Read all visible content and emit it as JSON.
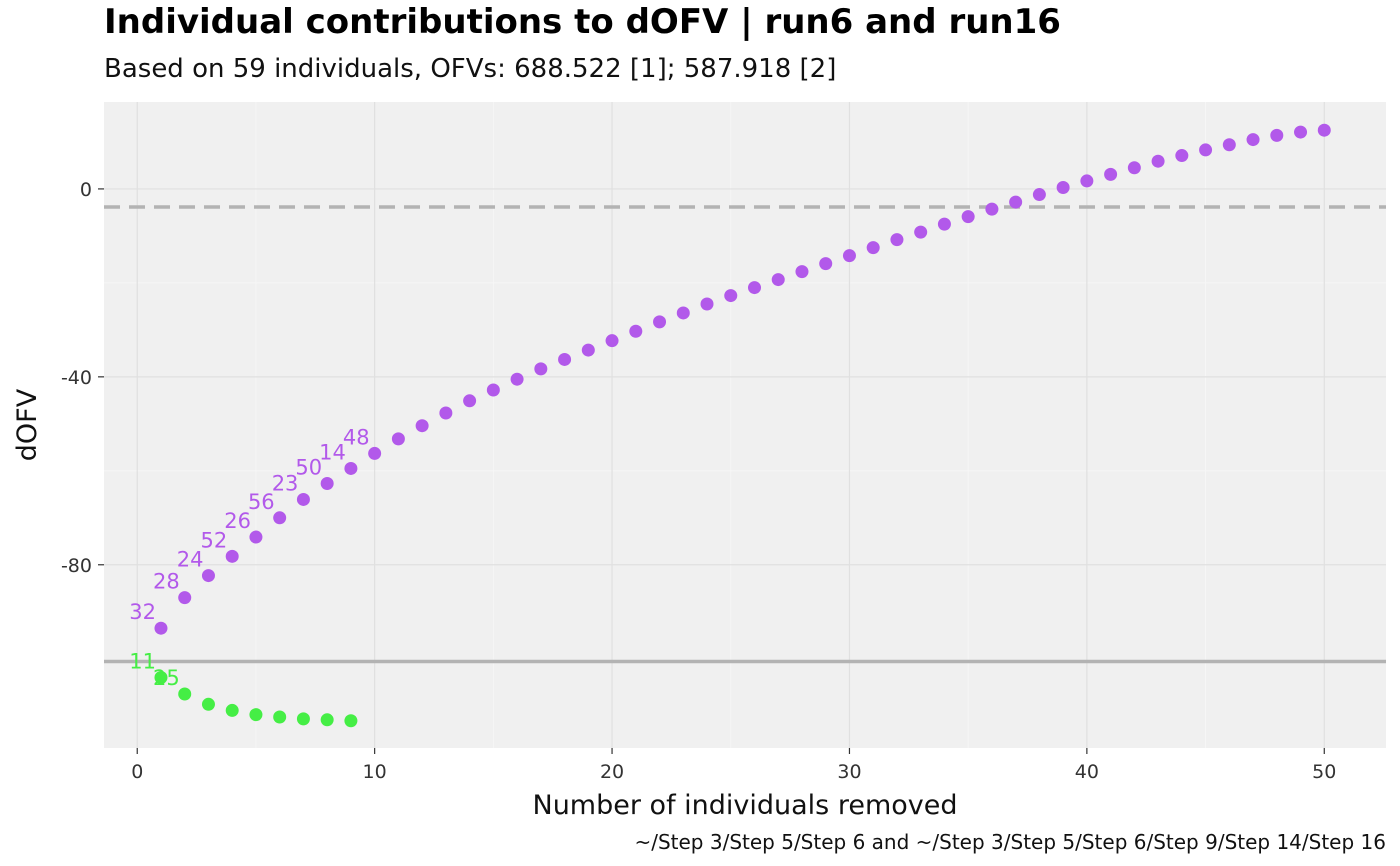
{
  "title": "Individual contributions to dOFV | run6 and run16",
  "subtitle": "Based on 59 individuals, OFVs: 688.522 [1]; 587.918 [2]",
  "caption": "~/Step 3/Step 5/Step 6 and ~/Step 3/Step 5/Step 6/Step 9/Step 14/Step 16",
  "chart_data": {
    "type": "scatter",
    "xlabel": "Number of individuals removed",
    "ylabel": "dOFV",
    "xlim": [
      -1.4,
      52.6
    ],
    "ylim": [
      -119,
      18.5
    ],
    "x_ticks": [
      0,
      10,
      20,
      30,
      40,
      50
    ],
    "x_tick_labels": [
      "0",
      "10",
      "20",
      "30",
      "40",
      "50"
    ],
    "y_ticks": [
      0,
      -40,
      -80
    ],
    "y_tick_labels": [
      "0",
      "-40",
      "-80"
    ],
    "grid": true,
    "legend": "none",
    "reference_lines": [
      {
        "style": "dashed",
        "y": -3.84,
        "color": "#b3b3b3"
      },
      {
        "style": "solid",
        "y": -100.6,
        "color": "#b3b3b3"
      }
    ],
    "series": [
      {
        "color": "#b259ea",
        "x": [
          1,
          2,
          3,
          4,
          5,
          6,
          7,
          8,
          9,
          10,
          11,
          12,
          13,
          14,
          15,
          16,
          17,
          18,
          19,
          20,
          21,
          22,
          23,
          24,
          25,
          26,
          27,
          28,
          29,
          30,
          31,
          32,
          33,
          34,
          35,
          36,
          37,
          38,
          39,
          40,
          41,
          42,
          43,
          44,
          45,
          46,
          47,
          48,
          49,
          50
        ],
        "y": [
          -93.5,
          -87.0,
          -82.3,
          -78.2,
          -74.1,
          -70.0,
          -66.1,
          -62.7,
          -59.5,
          -56.3,
          -53.2,
          -50.4,
          -47.7,
          -45.1,
          -42.8,
          -40.5,
          -38.3,
          -36.3,
          -34.3,
          -32.3,
          -30.3,
          -28.3,
          -26.4,
          -24.5,
          -22.7,
          -21.0,
          -19.3,
          -17.6,
          -15.9,
          -14.2,
          -12.5,
          -10.8,
          -9.2,
          -7.5,
          -5.9,
          -4.3,
          -2.8,
          -1.2,
          0.3,
          1.7,
          3.1,
          4.5,
          5.9,
          7.1,
          8.3,
          9.4,
          10.5,
          11.4,
          12.1,
          12.5
        ],
        "labels": [
          "32",
          "28",
          "24",
          "52",
          "26",
          "56",
          "23",
          "50",
          "14",
          "48"
        ]
      },
      {
        "color": "#45ee45",
        "x": [
          1,
          2,
          3,
          4,
          5,
          6,
          7,
          8,
          9
        ],
        "y": [
          -104.0,
          -107.5,
          -109.7,
          -111.0,
          -111.9,
          -112.4,
          -112.8,
          -113.0,
          -113.2
        ],
        "labels": [
          "11",
          "25"
        ]
      }
    ]
  }
}
